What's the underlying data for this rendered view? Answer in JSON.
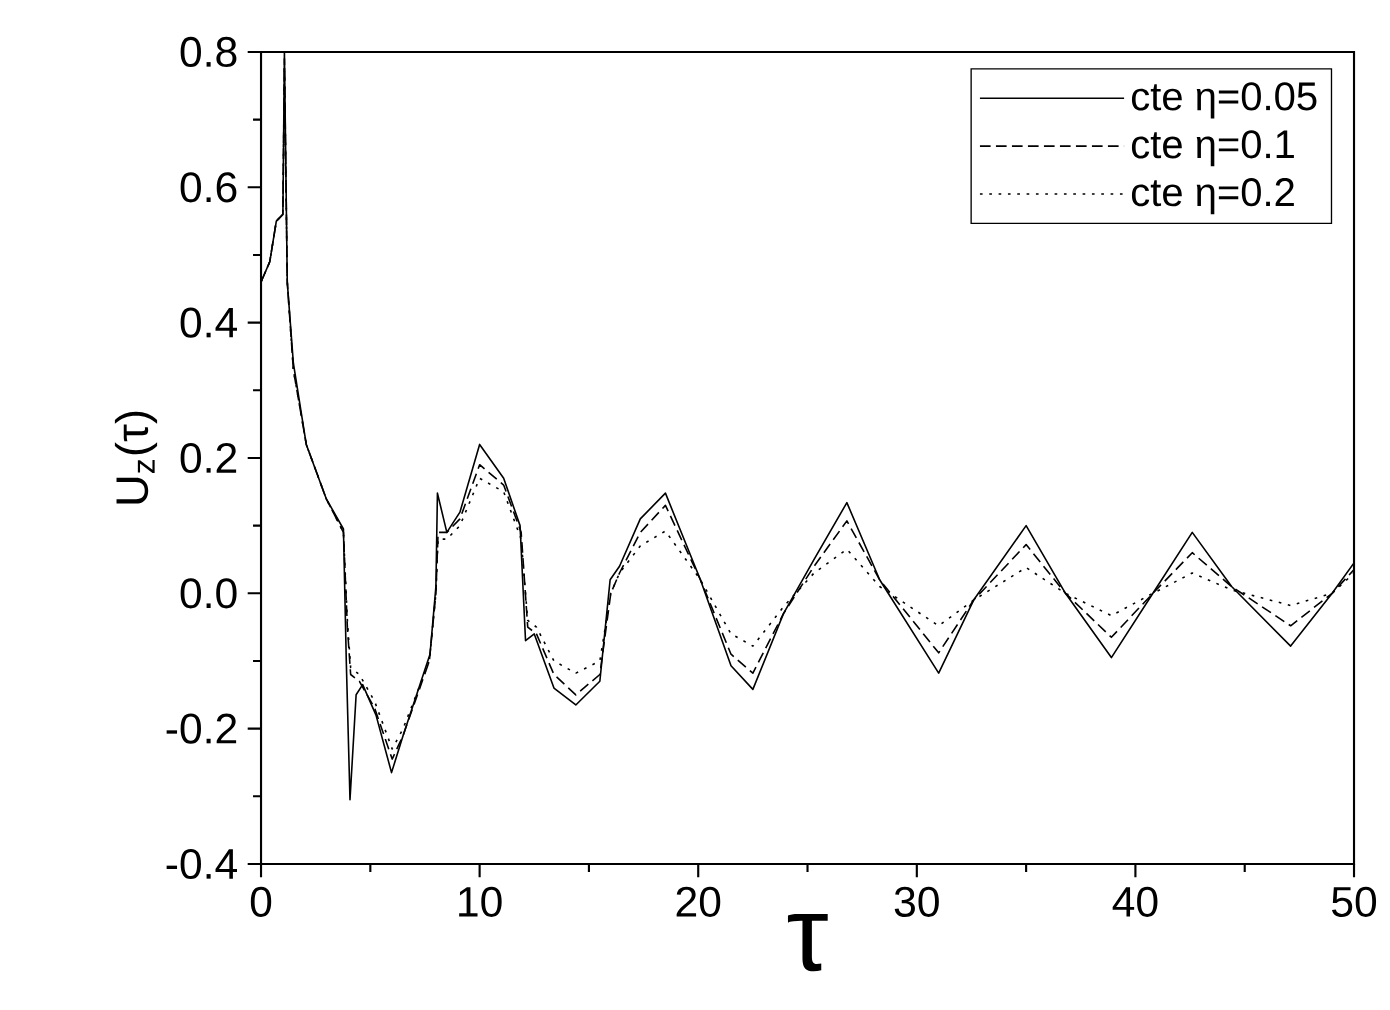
{
  "chart_data": {
    "type": "line",
    "xlabel": "τ",
    "ylabel": "U$_{z}$(τ)",
    "xlim": [
      0,
      50
    ],
    "ylim": [
      -0.4,
      0.8
    ],
    "xticks": [
      0,
      10,
      20,
      30,
      40,
      50
    ],
    "yticks": [
      {
        "value": -0.4,
        "label": "-0.4"
      },
      {
        "value": -0.2,
        "label": "-0.2"
      },
      {
        "value": 0,
        "label": "0.0"
      },
      {
        "value": 0.2,
        "label": "0.2"
      },
      {
        "value": 0.4,
        "label": "0.4"
      },
      {
        "value": 0.6,
        "label": "0.6"
      },
      {
        "value": 0.8,
        "label": "0.8"
      }
    ],
    "legend": "top right",
    "grid": false,
    "marker": "none",
    "series": [
      {
        "name": "cte η=0.05",
        "color": "#000000",
        "line_style": "solid",
        "x": [
          0,
          0.4,
          0.7,
          1.0,
          1.07,
          1.2,
          1.48,
          2.07,
          2.98,
          3.77,
          3.9,
          4.07,
          4.35,
          4.65,
          5.26,
          5.97,
          6.5,
          7.73,
          8.0,
          8.07,
          8.5,
          9.1,
          10.0,
          11.1,
          11.85,
          12.1,
          12.5,
          13.4,
          14.4,
          15.5,
          15.97,
          16.4,
          17.35,
          18.5,
          20.1,
          21.5,
          22.5,
          23.9,
          25.3,
          26.8,
          28.3,
          31.0,
          32.6,
          35.0,
          36.8,
          38.9,
          40.8,
          42.6,
          44.4,
          47.1,
          49.0,
          50
        ],
        "values": [
          0.46,
          0.49,
          0.55,
          0.56,
          0.8,
          0.46,
          0.34,
          0.22,
          0.14,
          0.095,
          -0.1,
          -0.305,
          -0.15,
          -0.135,
          -0.18,
          -0.265,
          -0.21,
          -0.09,
          0.01,
          0.148,
          0.09,
          0.12,
          0.22,
          0.17,
          0.1,
          -0.07,
          -0.06,
          -0.14,
          -0.165,
          -0.13,
          0.02,
          0.04,
          0.11,
          0.148,
          0.02,
          -0.107,
          -0.142,
          -0.03,
          0.05,
          0.134,
          0.02,
          -0.118,
          -0.01,
          0.1,
          0.0,
          -0.095,
          0.0,
          0.09,
          0.01,
          -0.078,
          0.0,
          0.045
        ]
      },
      {
        "name": "cte η=0.1",
        "color": "#000000",
        "line_style": "dashed",
        "x": [
          0,
          0.4,
          0.7,
          1.0,
          1.07,
          1.2,
          1.48,
          2.07,
          2.98,
          3.77,
          3.95,
          4.1,
          4.5,
          5.2,
          6.0,
          6.5,
          7.7,
          8.0,
          8.1,
          8.5,
          9.1,
          10.0,
          11.1,
          11.9,
          12.2,
          12.6,
          13.4,
          14.4,
          15.5,
          16.0,
          16.4,
          17.35,
          18.5,
          20.1,
          21.5,
          22.5,
          23.9,
          25.3,
          26.8,
          28.3,
          31.0,
          32.6,
          35.0,
          36.8,
          38.9,
          40.8,
          42.6,
          44.4,
          47.1,
          49.0,
          50
        ],
        "values": [
          0.46,
          0.49,
          0.55,
          0.56,
          0.79,
          0.46,
          0.33,
          0.22,
          0.14,
          0.09,
          -0.05,
          -0.12,
          -0.13,
          -0.17,
          -0.245,
          -0.21,
          -0.1,
          0.0,
          0.09,
          0.09,
          0.11,
          0.19,
          0.16,
          0.09,
          -0.05,
          -0.06,
          -0.12,
          -0.15,
          -0.12,
          0.0,
          0.03,
          0.09,
          0.13,
          0.02,
          -0.09,
          -0.118,
          -0.03,
          0.04,
          0.107,
          0.02,
          -0.088,
          -0.01,
          0.072,
          0.0,
          -0.065,
          0.0,
          0.06,
          0.01,
          -0.048,
          0.0,
          0.035
        ]
      },
      {
        "name": "cte η=0.2",
        "color": "#000000",
        "line_style": "dotted",
        "x": [
          0,
          0.4,
          0.7,
          1.0,
          1.07,
          1.2,
          1.48,
          2.07,
          2.98,
          3.77,
          3.95,
          4.1,
          4.5,
          5.2,
          6.0,
          6.5,
          7.7,
          8.0,
          8.1,
          8.5,
          9.1,
          10.0,
          11.1,
          11.9,
          12.2,
          12.6,
          13.4,
          14.4,
          15.5,
          16.0,
          16.4,
          17.35,
          18.5,
          20.1,
          21.5,
          22.5,
          23.9,
          25.3,
          26.8,
          28.3,
          31.0,
          32.6,
          35.0,
          36.8,
          38.9,
          40.8,
          42.6,
          44.4,
          47.1,
          49.0,
          50
        ],
        "values": [
          0.46,
          0.49,
          0.55,
          0.56,
          0.78,
          0.46,
          0.33,
          0.22,
          0.14,
          0.09,
          -0.04,
          -0.11,
          -0.12,
          -0.16,
          -0.23,
          -0.2,
          -0.1,
          0.0,
          0.08,
          0.08,
          0.1,
          0.17,
          0.15,
          0.08,
          -0.04,
          -0.05,
          -0.1,
          -0.118,
          -0.1,
          0.0,
          0.03,
          0.07,
          0.092,
          0.02,
          -0.06,
          -0.078,
          -0.02,
          0.03,
          0.065,
          0.01,
          -0.048,
          -0.01,
          0.038,
          0.0,
          -0.033,
          0.0,
          0.03,
          0.005,
          -0.018,
          0.0,
          0.03
        ]
      }
    ]
  }
}
